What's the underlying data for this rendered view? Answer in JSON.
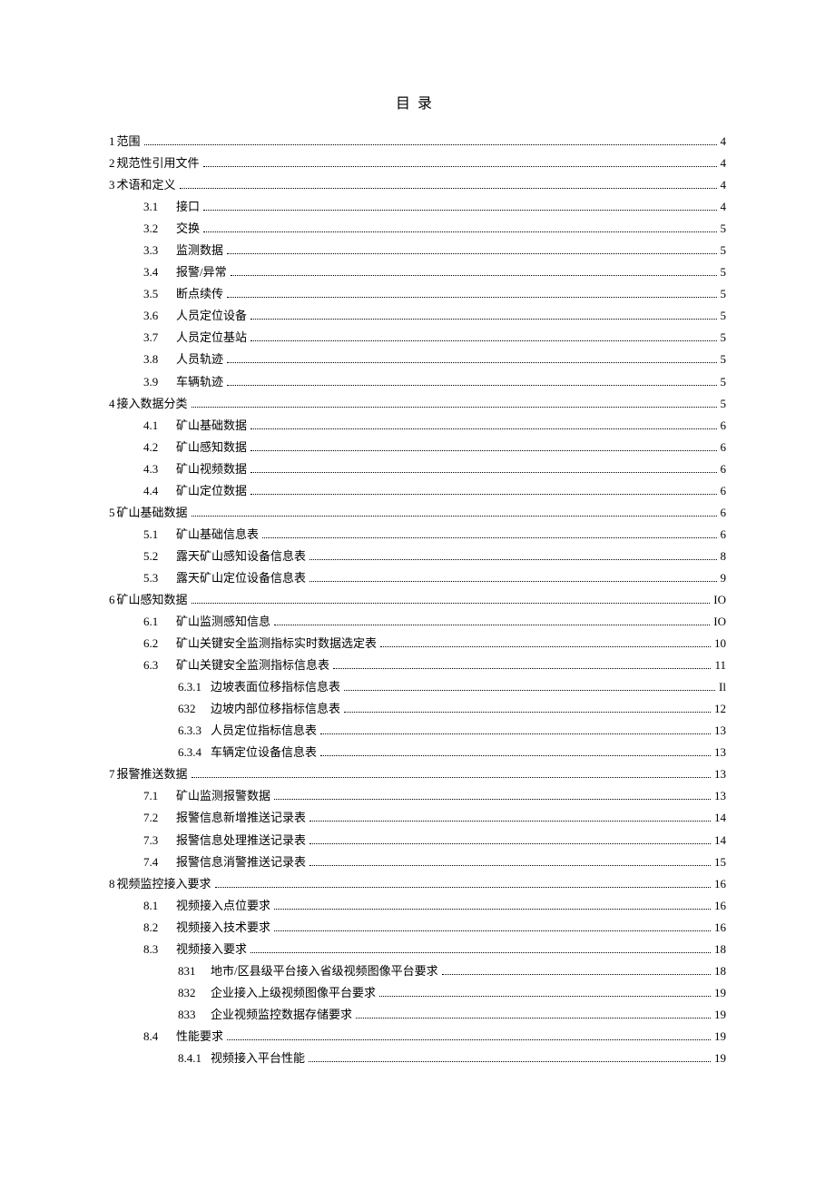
{
  "title": "目录",
  "entries": [
    {
      "level": 0,
      "num": "1",
      "label": "范围",
      "page": "4"
    },
    {
      "level": 0,
      "num": "2",
      "label": "规范性引用文件",
      "page": "4"
    },
    {
      "level": 0,
      "num": "3",
      "label": "术语和定义",
      "page": "4"
    },
    {
      "level": 1,
      "num": "3.1",
      "label": "接口",
      "page": "4"
    },
    {
      "level": 1,
      "num": "3.2",
      "label": "交换",
      "page": "5"
    },
    {
      "level": 1,
      "num": "3.3",
      "label": "监测数据",
      "page": "5"
    },
    {
      "level": 1,
      "num": "3.4",
      "label": "报警/异常",
      "page": "5"
    },
    {
      "level": 1,
      "num": "3.5",
      "label": "断点续传",
      "page": "5"
    },
    {
      "level": 1,
      "num": "3.6",
      "label": "人员定位设备",
      "page": "5"
    },
    {
      "level": 1,
      "num": "3.7",
      "label": "人员定位基站",
      "page": "5"
    },
    {
      "level": 1,
      "num": "3.8",
      "label": "人员轨迹",
      "page": "5"
    },
    {
      "level": 1,
      "num": "3.9",
      "label": "车辆轨迹",
      "page": "5"
    },
    {
      "level": 0,
      "num": "4",
      "label": "接入数据分类",
      "page": "5"
    },
    {
      "level": 1,
      "num": "4.1",
      "label": "矿山基础数据",
      "page": "6"
    },
    {
      "level": 1,
      "num": "4.2",
      "label": "矿山感知数据",
      "page": "6"
    },
    {
      "level": 1,
      "num": "4.3",
      "label": "矿山视频数据",
      "page": "6"
    },
    {
      "level": 1,
      "num": "4.4",
      "label": "矿山定位数据",
      "page": "6"
    },
    {
      "level": 0,
      "num": "5",
      "label": "矿山基础数据",
      "page": "6"
    },
    {
      "level": 1,
      "num": "5.1",
      "label": "矿山基础信息表",
      "page": "6"
    },
    {
      "level": 1,
      "num": "5.2",
      "label": "露天矿山感知设备信息表",
      "page": "8"
    },
    {
      "level": 1,
      "num": "5.3",
      "label": "露天矿山定位设备信息表",
      "page": "9"
    },
    {
      "level": 0,
      "num": "6",
      "label": "矿山感知数据",
      "page": "IO"
    },
    {
      "level": 1,
      "num": "6.1",
      "label": "矿山监测感知信息",
      "page": "IO"
    },
    {
      "level": 1,
      "num": "6.2",
      "label": "矿山关键安全监测指标实时数据选定表",
      "page": "10"
    },
    {
      "level": 1,
      "num": "6.3",
      "label": "矿山关键安全监测指标信息表",
      "page": "11"
    },
    {
      "level": 2,
      "num": "6.3.1",
      "label": "边坡表面位移指标信息表",
      "page": "Il"
    },
    {
      "level": 2,
      "num": "632",
      "label": "边坡内部位移指标信息表",
      "page": "12"
    },
    {
      "level": 2,
      "num": "6.3.3",
      "label": "人员定位指标信息表",
      "page": "13"
    },
    {
      "level": 2,
      "num": "6.3.4",
      "label": "车辆定位设备信息表",
      "page": "13"
    },
    {
      "level": 0,
      "num": "7",
      "label": "报警推送数据",
      "page": "13"
    },
    {
      "level": 1,
      "num": "7.1",
      "label": "矿山监测报警数据",
      "page": "13"
    },
    {
      "level": 1,
      "num": "7.2",
      "label": "报警信息新增推送记录表",
      "page": "14"
    },
    {
      "level": 1,
      "num": "7.3",
      "label": "报警信息处理推送记录表",
      "page": "14"
    },
    {
      "level": 1,
      "num": "7.4",
      "label": "报警信息消警推送记录表",
      "page": "15"
    },
    {
      "level": 0,
      "num": "8",
      "label": "视频监控接入要求",
      "page": "16"
    },
    {
      "level": 1,
      "num": "8.1",
      "label": "视频接入点位要求",
      "page": "16"
    },
    {
      "level": 1,
      "num": "8.2",
      "label": "视频接入技术要求",
      "page": "16"
    },
    {
      "level": 1,
      "num": "8.3",
      "label": "视频接入要求",
      "page": "18"
    },
    {
      "level": 2,
      "num": "831",
      "label": "地市/区县级平台接入省级视频图像平台要求",
      "page": "18"
    },
    {
      "level": 2,
      "num": "832",
      "label": "企业接入上级视频图像平台要求",
      "page": "19"
    },
    {
      "level": 2,
      "num": "833",
      "label": "企业视频监控数据存储要求",
      "page": "19"
    },
    {
      "level": 1,
      "num": "8.4",
      "label": "性能要求",
      "page": "19"
    },
    {
      "level": 2,
      "num": "8.4.1",
      "label": "视频接入平台性能",
      "page": "19"
    }
  ]
}
